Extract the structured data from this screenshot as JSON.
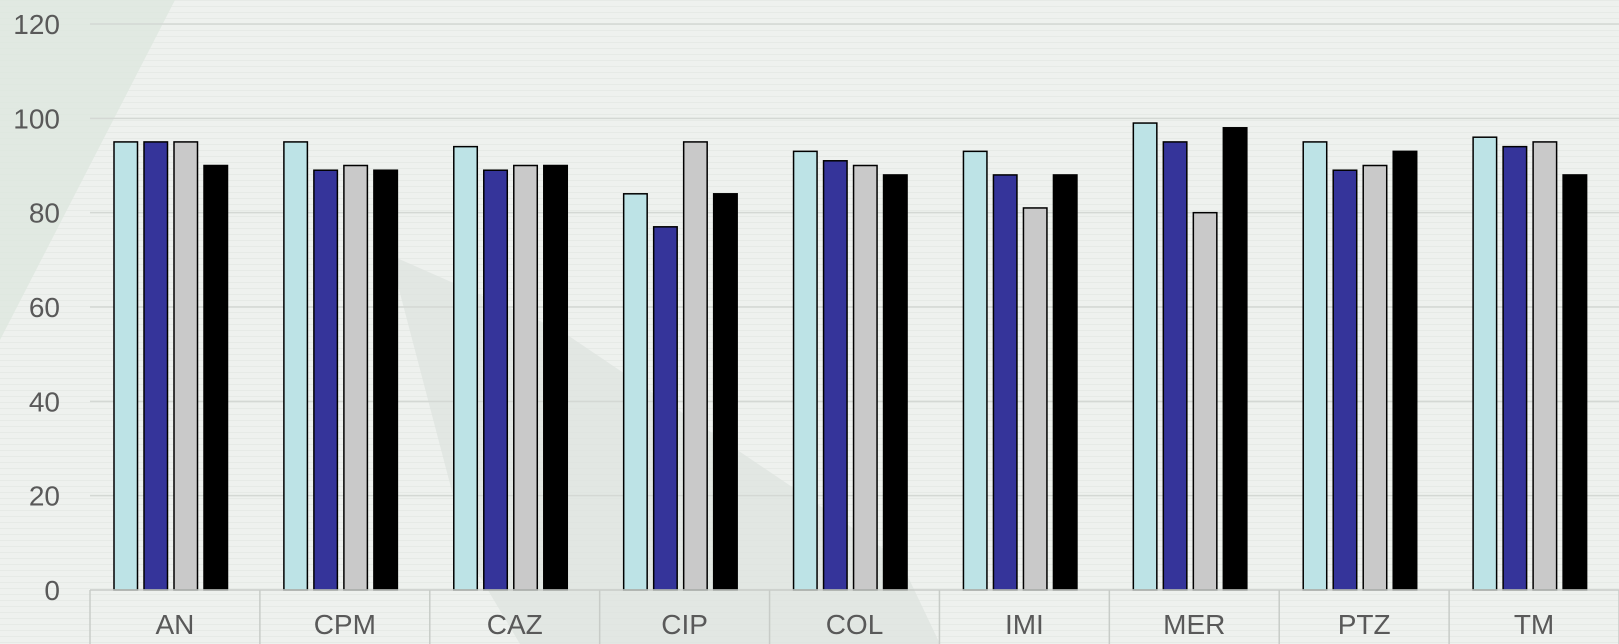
{
  "chart_data": {
    "type": "bar",
    "categories": [
      "AN",
      "CPM",
      "CAZ",
      "CIP",
      "COL",
      "IMI",
      "MER",
      "PTZ",
      "TM"
    ],
    "series": [
      {
        "values": [
          95,
          95,
          94,
          84,
          93,
          93,
          99,
          95,
          96
        ],
        "color": "#bde3e6"
      },
      {
        "values": [
          95,
          89,
          89,
          77,
          91,
          88,
          95,
          89,
          94
        ],
        "color": "#35349a"
      },
      {
        "values": [
          95,
          90,
          90,
          95,
          90,
          81,
          80,
          90,
          95
        ],
        "color": "#c9c9c9"
      },
      {
        "values": [
          90,
          89,
          90,
          84,
          88,
          88,
          98,
          93,
          88
        ],
        "color": "#000000"
      }
    ],
    "ylim": [
      0,
      120
    ],
    "yticks": [
      0,
      20,
      40,
      60,
      80,
      100,
      120
    ],
    "grid": true,
    "legend": "none",
    "bar_outline": "#000000"
  }
}
